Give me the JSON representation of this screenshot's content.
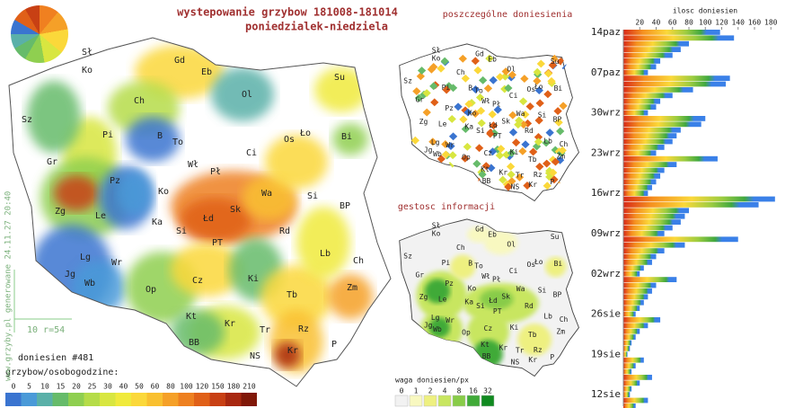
{
  "header": {
    "title": "wystepowanie grzybow 181008-181014",
    "subtitle": "poniedzialek-niedziela"
  },
  "map_labels": [
    "Sł",
    "Gd",
    "Eb",
    "Ko",
    "Su",
    "Ol",
    "Ch",
    "Sz",
    "Pi",
    "B",
    "To",
    "Ło",
    "Os",
    "Bi",
    "Ci",
    "Gr",
    "Wł",
    "Pł",
    "Pz",
    "Ko",
    "Wa",
    "Si",
    "Zg",
    "Le",
    "Ka",
    "Łd",
    "Sk",
    "BP",
    "Si",
    "Rd",
    "Lg",
    "Wr",
    "PT",
    "Lb",
    "Ch",
    "Jg",
    "Wb",
    "Op",
    "Cz",
    "Ki",
    "Zm",
    "Tb",
    "Kt",
    "Kr",
    "Rz",
    "Tr",
    "BB",
    "Kr",
    "NS",
    "P"
  ],
  "panels": {
    "reports_title": "poszczególne doniesienia",
    "density_title": "gestosc informacji"
  },
  "footer": {
    "count": "doniesien #481",
    "legend_title": "grzybow/osobogodzine:",
    "legend": {
      "labels": [
        0,
        5,
        10,
        15,
        20,
        25,
        30,
        40,
        50,
        60,
        80,
        100,
        120,
        150,
        180,
        210
      ],
      "colors": [
        "#3a74d0",
        "#4a9ad8",
        "#5ab0a8",
        "#66bb6a",
        "#8fcf50",
        "#b5dc48",
        "#d8e640",
        "#f0ea3c",
        "#fbd83a",
        "#f9c030",
        "#f5a028",
        "#ee8020",
        "#e06018",
        "#c84014",
        "#a82810",
        "#801808"
      ]
    }
  },
  "credit": "www.grzyby.pl generowane 24.11.27 20:40",
  "scale_note": "10 r=54",
  "density_legend": {
    "title": "waga doniesien/px",
    "labels": [
      0,
      1,
      2,
      4,
      8,
      16,
      32
    ],
    "colors": [
      "#f2f2f2",
      "#f8f8c0",
      "#eef080",
      "#c8e660",
      "#88cc48",
      "#40aa38",
      "#108a20"
    ]
  },
  "daily_chart": {
    "title": "ilosc doniesien",
    "xlim": [
      0,
      200
    ],
    "ticks": [
      20,
      40,
      60,
      80,
      100,
      120,
      140,
      160,
      180
    ],
    "dates": [
      "14paz",
      "07paz",
      "30wrz",
      "23wrz",
      "16wrz",
      "09wrz",
      "02wrz",
      "26sie",
      "19sie",
      "12sie"
    ],
    "values": [
      118,
      135,
      80,
      70,
      60,
      45,
      40,
      30,
      130,
      125,
      85,
      60,
      45,
      40,
      30,
      100,
      95,
      70,
      65,
      60,
      50,
      40,
      115,
      65,
      50,
      45,
      40,
      35,
      30,
      185,
      165,
      80,
      75,
      70,
      60,
      50,
      140,
      75,
      50,
      40,
      35,
      25,
      20,
      65,
      40,
      35,
      30,
      25,
      20,
      15,
      45,
      30,
      20,
      15,
      10,
      8,
      5,
      25,
      15,
      10,
      35,
      20,
      10,
      8,
      30,
      15
    ]
  }
}
